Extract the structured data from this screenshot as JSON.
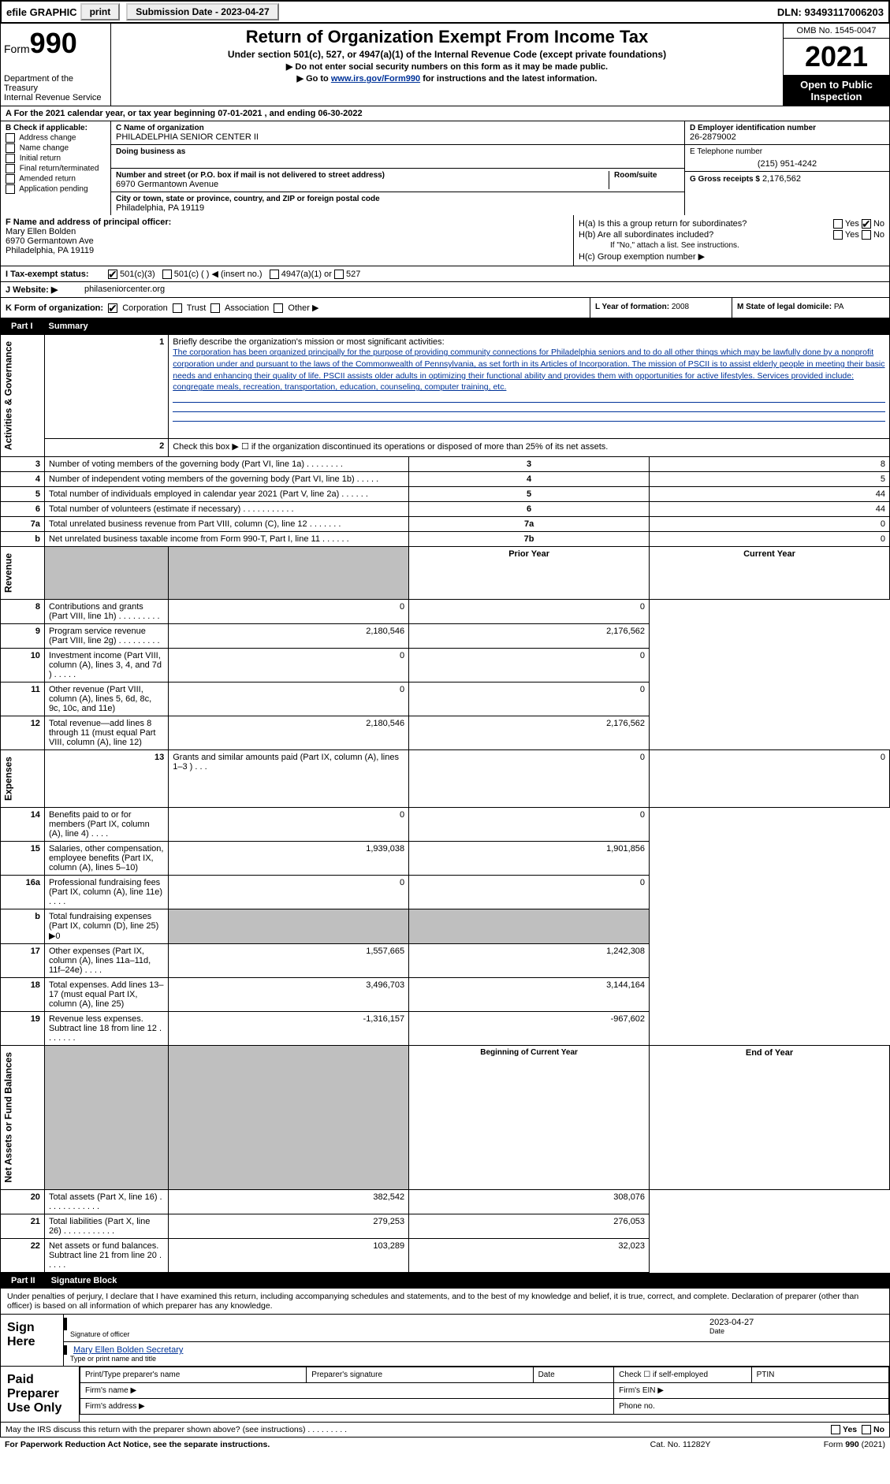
{
  "top": {
    "efile": "efile GRAPHIC",
    "print": "print",
    "sub_label": "Submission Date - 2023-04-27",
    "dln": "DLN: 93493117006203"
  },
  "header": {
    "form_label": "Form",
    "form_num": "990",
    "dept": "Department of the Treasury",
    "irs": "Internal Revenue Service",
    "title": "Return of Organization Exempt From Income Tax",
    "sub1": "Under section 501(c), 527, or 4947(a)(1) of the Internal Revenue Code (except private foundations)",
    "sub2": "▶ Do not enter social security numbers on this form as it may be made public.",
    "sub3_a": "▶ Go to ",
    "sub3_link": "www.irs.gov/Form990",
    "sub3_b": " for instructions and the latest information.",
    "omb": "OMB No. 1545-0047",
    "year": "2021",
    "open": "Open to Public Inspection"
  },
  "line_a": "A   For the 2021 calendar year, or tax year beginning 07-01-2021   , and ending 06-30-2022",
  "b": {
    "label": "B Check if applicable:",
    "opts": [
      "Address change",
      "Name change",
      "Initial return",
      "Final return/terminated",
      "Amended return",
      "Application pending"
    ]
  },
  "c": {
    "name_label": "C Name of organization",
    "name": "PHILADELPHIA SENIOR CENTER II",
    "dba_label": "Doing business as",
    "street_label": "Number and street (or P.O. box if mail is not delivered to street address)",
    "room_label": "Room/suite",
    "street": "6970 Germantown Avenue",
    "city_label": "City or town, state or province, country, and ZIP or foreign postal code",
    "city": "Philadelphia, PA  19119"
  },
  "d": {
    "label": "D Employer identification number",
    "val": "26-2879002"
  },
  "e": {
    "label": "E Telephone number",
    "val": "(215) 951-4242"
  },
  "g": {
    "label": "G Gross receipts $",
    "val": "2,176,562"
  },
  "f": {
    "label": "F  Name and address of principal officer:",
    "name": "Mary Ellen Bolden",
    "addr1": "6970 Germantown Ave",
    "addr2": "Philadelphia, PA  19119"
  },
  "h": {
    "a_label": "H(a)  Is this a group return for subordinates?",
    "b_label": "H(b)  Are all subordinates included?",
    "b_note": "If \"No,\" attach a list. See instructions.",
    "c_label": "H(c)  Group exemption number ▶",
    "yes": "Yes",
    "no": "No"
  },
  "i": {
    "label": "I    Tax-exempt status:",
    "o1": "501(c)(3)",
    "o2": "501(c) (   ) ◀ (insert no.)",
    "o3": "4947(a)(1) or",
    "o4": "527"
  },
  "j": {
    "label": "J   Website: ▶",
    "val": "philaseniorcenter.org"
  },
  "k": {
    "label": "K Form of organization:",
    "o1": "Corporation",
    "o2": "Trust",
    "o3": "Association",
    "o4": "Other ▶"
  },
  "l": {
    "label": "L Year of formation:",
    "val": "2008"
  },
  "m": {
    "label": "M State of legal domicile:",
    "val": "PA"
  },
  "part1": {
    "num": "Part I",
    "title": "Summary"
  },
  "summary": {
    "l1_label": "Briefly describe the organization's mission or most significant activities:",
    "l1_text": "The corporation has been organized principally for the purpose of providing community connections for Philadelphia seniors and to do all other things which may be lawfully done by a nonprofit corporation under and pursuant to the laws of the Commonwealth of Pennsylvania, as set forth in its Articles of Incorporation. The mission of PSCII is to assist elderly people in meeting their basic needs and enhancing their quality of life. PSCII assists older adults in optimizing their functional ability and provides them with opportunities for active lifestyles. Services provided include: congregate meals, recreation, transportation, education, counseling, computer training, etc.",
    "l2": "Check this box ▶ ☐ if the organization discontinued its operations or disposed of more than 25% of its net assets.",
    "rows_small": [
      {
        "n": "3",
        "d": "Number of voting members of the governing body (Part VI, line 1a)   .    .    .    .    .    .    .    .",
        "rn": "3",
        "v": "8"
      },
      {
        "n": "4",
        "d": "Number of independent voting members of the governing body (Part VI, line 1b)   .    .    .    .    .",
        "rn": "4",
        "v": "5"
      },
      {
        "n": "5",
        "d": "Total number of individuals employed in calendar year 2021 (Part V, line 2a)   .    .    .    .    .    .",
        "rn": "5",
        "v": "44"
      },
      {
        "n": "6",
        "d": "Total number of volunteers (estimate if necessary)   .    .    .    .    .    .    .    .    .    .    .",
        "rn": "6",
        "v": "44"
      },
      {
        "n": "7a",
        "d": "Total unrelated business revenue from Part VIII, column (C), line 12   .    .    .    .    .    .    .",
        "rn": "7a",
        "v": "0"
      },
      {
        "n": "b",
        "d": "Net unrelated business taxable income from Form 990-T, Part I, line 11   .    .    .    .    .    .",
        "rn": "7b",
        "v": "0"
      }
    ],
    "prior_label": "Prior Year",
    "current_label": "Current Year",
    "rows_rev": [
      {
        "n": "8",
        "d": "Contributions and grants (Part VIII, line 1h)   .    .    .    .    .    .    .    .    .",
        "p": "0",
        "c": "0"
      },
      {
        "n": "9",
        "d": "Program service revenue (Part VIII, line 2g)   .    .    .    .    .    .    .    .    .",
        "p": "2,180,546",
        "c": "2,176,562"
      },
      {
        "n": "10",
        "d": "Investment income (Part VIII, column (A), lines 3, 4, and 7d )   .    .    .    .    .",
        "p": "0",
        "c": "0"
      },
      {
        "n": "11",
        "d": "Other revenue (Part VIII, column (A), lines 5, 6d, 8c, 9c, 10c, and 11e)",
        "p": "0",
        "c": "0"
      },
      {
        "n": "12",
        "d": "Total revenue—add lines 8 through 11 (must equal Part VIII, column (A), line 12)",
        "p": "2,180,546",
        "c": "2,176,562"
      }
    ],
    "rows_exp": [
      {
        "n": "13",
        "d": "Grants and similar amounts paid (Part IX, column (A), lines 1–3 )   .    .    .",
        "p": "0",
        "c": "0"
      },
      {
        "n": "14",
        "d": "Benefits paid to or for members (Part IX, column (A), line 4)   .    .    .    .",
        "p": "0",
        "c": "0"
      },
      {
        "n": "15",
        "d": "Salaries, other compensation, employee benefits (Part IX, column (A), lines 5–10)",
        "p": "1,939,038",
        "c": "1,901,856"
      },
      {
        "n": "16a",
        "d": "Professional fundraising fees (Part IX, column (A), line 11e)   .    .    .    .",
        "p": "0",
        "c": "0"
      },
      {
        "n": "b",
        "d": "Total fundraising expenses (Part IX, column (D), line 25) ▶0",
        "p": "",
        "c": "",
        "shaded": true
      },
      {
        "n": "17",
        "d": "Other expenses (Part IX, column (A), lines 11a–11d, 11f–24e)   .    .    .    .",
        "p": "1,557,665",
        "c": "1,242,308"
      },
      {
        "n": "18",
        "d": "Total expenses. Add lines 13–17 (must equal Part IX, column (A), line 25)",
        "p": "3,496,703",
        "c": "3,144,164"
      },
      {
        "n": "19",
        "d": "Revenue less expenses. Subtract line 18 from line 12   .    .    .    .    .    .    .",
        "p": "-1,316,157",
        "c": "-967,602"
      }
    ],
    "boy_label": "Beginning of Current Year",
    "eoy_label": "End of Year",
    "rows_net": [
      {
        "n": "20",
        "d": "Total assets (Part X, line 16)   .    .    .    .    .    .    .    .    .    .    .    .",
        "p": "382,542",
        "c": "308,076"
      },
      {
        "n": "21",
        "d": "Total liabilities (Part X, line 26)   .    .    .    .    .    .    .    .    .    .    .",
        "p": "279,253",
        "c": "276,053"
      },
      {
        "n": "22",
        "d": "Net assets or fund balances. Subtract line 21 from line 20   .    .    .    .    .",
        "p": "103,289",
        "c": "32,023"
      }
    ],
    "tab_gov": "Activities & Governance",
    "tab_rev": "Revenue",
    "tab_exp": "Expenses",
    "tab_net": "Net Assets or Fund Balances"
  },
  "part2": {
    "num": "Part II",
    "title": "Signature Block"
  },
  "sig": {
    "intro": "Under penalties of perjury, I declare that I have examined this return, including accompanying schedules and statements, and to the best of my knowledge and belief, it is true, correct, and complete. Declaration of preparer (other than officer) is based on all information of which preparer has any knowledge.",
    "sign_here": "Sign Here",
    "sig_officer": "Signature of officer",
    "date": "2023-04-27",
    "date_label": "Date",
    "name": "Mary Ellen Bolden  Secretary",
    "name_label": "Type or print name and title",
    "paid": "Paid Preparer Use Only",
    "pp_name": "Print/Type preparer's name",
    "pp_sig": "Preparer's signature",
    "pp_date": "Date",
    "pp_check": "Check ☐ if self-employed",
    "pp_ptin": "PTIN",
    "firm_name": "Firm's name   ▶",
    "firm_ein": "Firm's EIN ▶",
    "firm_addr": "Firm's address ▶",
    "phone": "Phone no."
  },
  "footer": {
    "discuss": "May the IRS discuss this return with the preparer shown above? (see instructions)   .    .    .    .    .    .    .    .    .",
    "yes": "Yes",
    "no": "No",
    "pra": "For Paperwork Reduction Act Notice, see the separate instructions.",
    "cat": "Cat. No. 11282Y",
    "form": "Form 990 (2021)"
  }
}
